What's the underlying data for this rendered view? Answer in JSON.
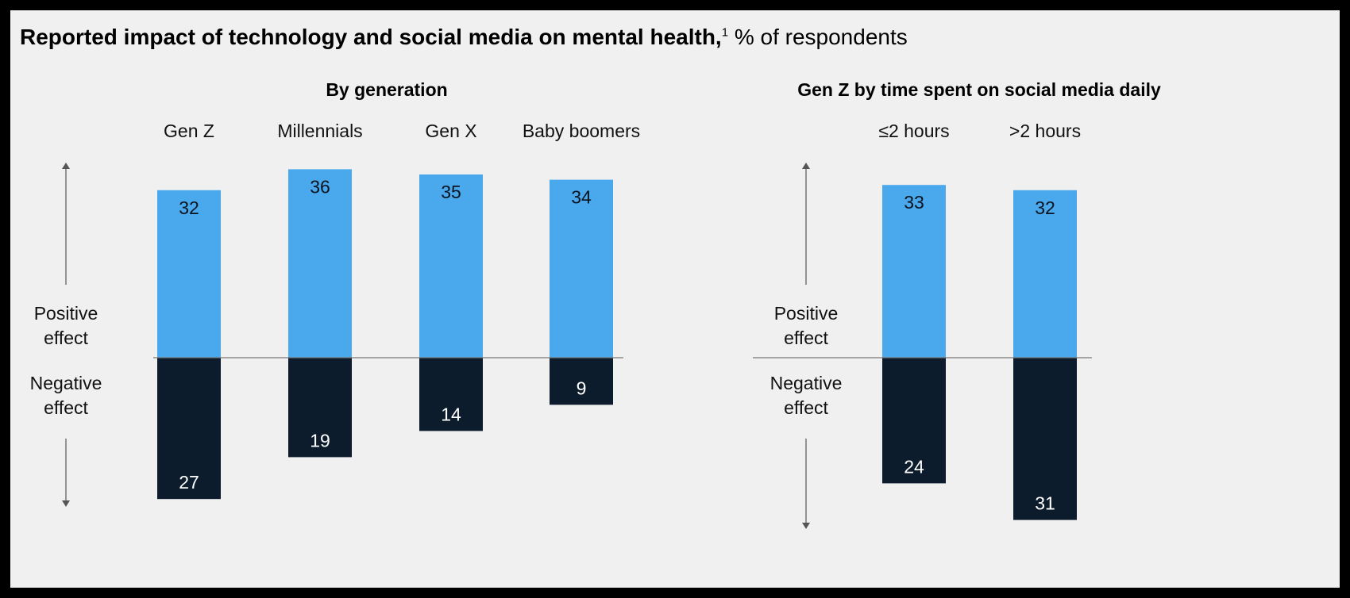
{
  "header": {
    "title": "Reported impact of technology and social media on mental health,",
    "footnote_marker": "1",
    "unit": "% of respondents"
  },
  "colors": {
    "positive": "#4aa8ec",
    "negative": "#0c1c2c",
    "background": "#f0f0f0"
  },
  "axis_labels": {
    "positive": "Positive effect",
    "negative": "Negative effect"
  },
  "chart_data": [
    {
      "type": "bar",
      "title": "By generation",
      "categories": [
        "Gen Z",
        "Millennials",
        "Gen X",
        "Baby boomers"
      ],
      "series": [
        {
          "name": "Positive effect",
          "values": [
            32,
            36,
            35,
            34
          ]
        },
        {
          "name": "Negative effect",
          "values": [
            27,
            19,
            14,
            9
          ]
        }
      ],
      "ylim": [
        -31,
        36
      ]
    },
    {
      "type": "bar",
      "title": "Gen Z by time spent on social media daily",
      "categories": [
        "≤2 hours",
        ">2 hours"
      ],
      "series": [
        {
          "name": "Positive effect",
          "values": [
            33,
            32
          ]
        },
        {
          "name": "Negative effect",
          "values": [
            24,
            31
          ]
        }
      ],
      "ylim": [
        -31,
        36
      ]
    }
  ]
}
